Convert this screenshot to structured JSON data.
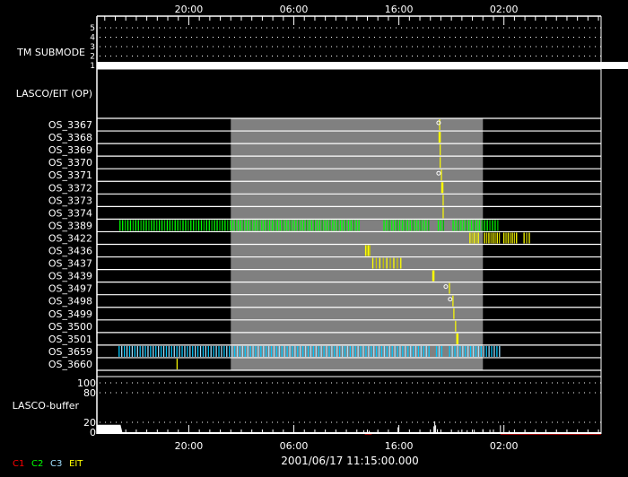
{
  "chart_data": {
    "type": "timeline",
    "title": "2001/06/17 11:15:00.000",
    "time_range": [
      "17 11:15",
      "19 11:15"
    ],
    "time_tick_labels": [
      {
        "t": "17 20:00",
        "label": "20:00"
      },
      {
        "t": "18 06:00",
        "label": "06:00"
      },
      {
        "t": "18 16:00",
        "label": "16:00"
      },
      {
        "t": "19 02:00",
        "label": "02:00"
      }
    ],
    "highlight_interval": [
      "18 00:00",
      "19 00:00"
    ],
    "highlight_color": "#808080",
    "tm_submode": {
      "label": "TM SUBMODE",
      "levels": [
        "1",
        "2",
        "3",
        "4",
        "5"
      ],
      "value": 1,
      "grid": "dotted"
    },
    "op_panel": {
      "label": "LASCO/EIT (OP)"
    },
    "rows": [
      {
        "label": "OS_3367",
        "color": "#ffff00",
        "marks": [
          "18 19:53"
        ],
        "circles": [
          "18 19:47"
        ]
      },
      {
        "label": "OS_3368",
        "color": "#ffff00",
        "marks": [
          "18 19:53"
        ],
        "thick": true
      },
      {
        "label": "OS_3369",
        "color": "#ffff00",
        "marks": [
          "18 19:56"
        ]
      },
      {
        "label": "OS_3370",
        "color": "#ffff00",
        "marks": [
          "18 19:56"
        ]
      },
      {
        "label": "OS_3371",
        "color": "#ffff00",
        "marks": [
          "18 20:03"
        ],
        "circles": [
          "18 19:47"
        ]
      },
      {
        "label": "OS_3372",
        "color": "#ffff00",
        "marks": [
          "18 20:08"
        ],
        "thick": true
      },
      {
        "label": "OS_3373",
        "color": "#ffff00",
        "marks": [
          "18 20:13"
        ]
      },
      {
        "label": "OS_3374",
        "color": "#ffff00",
        "marks": [
          "18 20:13"
        ]
      },
      {
        "label": "OS_3389",
        "color": "#00ff00",
        "ranges": [
          {
            "from": "17 13:27",
            "to": "18 12:25",
            "step_min": 15
          },
          {
            "from": "18 14:35",
            "to": "18 19:00",
            "step_min": 15
          },
          {
            "from": "18 19:45",
            "to": "18 20:25",
            "step_min": 15
          },
          {
            "from": "18 21:10",
            "to": "19 01:38",
            "step_min": 15
          }
        ]
      },
      {
        "label": "OS_3422",
        "color": "#ffff00",
        "ranges": [
          {
            "from": "18 22:46",
            "to": "18 23:45",
            "step_min": 12
          },
          {
            "from": "19 00:10",
            "to": "19 01:40",
            "step_min": 12
          },
          {
            "from": "19 02:00",
            "to": "19 03:15",
            "step_min": 12
          },
          {
            "from": "19 03:55",
            "to": "19 04:36",
            "step_min": 15
          }
        ]
      },
      {
        "label": "OS_3436",
        "color": "#ffff00",
        "ranges": [
          {
            "from": "18 12:50",
            "to": "18 13:21",
            "step_min": 8
          }
        ]
      },
      {
        "label": "OS_3437",
        "color": "#ffff00",
        "ranges": [
          {
            "from": "18 13:31",
            "to": "18 16:24",
            "step_min": 20
          }
        ]
      },
      {
        "label": "OS_3439",
        "color": "#ffff00",
        "marks": [
          "18 19:17"
        ],
        "thick": true
      },
      {
        "label": "OS_3497",
        "color": "#ffff00",
        "marks": [
          "18 20:49"
        ],
        "circles": [
          "18 20:28"
        ]
      },
      {
        "label": "OS_3498",
        "color": "#ffff00",
        "marks": [
          "18 21:09"
        ],
        "circles": [
          "18 20:53"
        ]
      },
      {
        "label": "OS_3499",
        "color": "#ffff00",
        "marks": [
          "18 21:14"
        ]
      },
      {
        "label": "OS_3500",
        "color": "#ffff00",
        "marks": [
          "18 21:24"
        ]
      },
      {
        "label": "OS_3501",
        "color": "#ffff00",
        "marks": [
          "18 21:34"
        ],
        "thick": true
      },
      {
        "label": "OS_3659",
        "color": "#00c8ff",
        "ranges": [
          {
            "from": "17 13:22",
            "to": "18 19:05",
            "step_min": 15
          },
          {
            "from": "18 19:35",
            "to": "18 20:05",
            "step_min": 15
          },
          {
            "from": "18 20:50",
            "to": "19 01:40",
            "step_min": 15
          }
        ]
      },
      {
        "label": "OS_3660",
        "color": "#ffff00",
        "marks": [
          "17 18:53"
        ]
      }
    ],
    "buffer": {
      "label": "LASCO-buffer",
      "ytick_labels": [
        "100",
        "80",
        "20",
        "0"
      ],
      "ylim": [
        0,
        100
      ],
      "grid": "dotted",
      "fill": [
        [
          "17 11:15",
          15
        ],
        [
          "17 13:30",
          15
        ]
      ],
      "spikes": [
        [
          "18 15:55",
          10
        ],
        [
          "18 12:40",
          4
        ],
        [
          "18 13:10",
          3
        ],
        [
          "18 14:00",
          3
        ],
        [
          "18 19:20",
          12
        ],
        [
          "18 19:25",
          22
        ],
        [
          "18 19:30",
          14
        ],
        [
          "18 19:40",
          6
        ],
        [
          "18 21:40",
          4
        ],
        [
          "18 22:30",
          4
        ],
        [
          "18 23:10",
          5
        ],
        [
          "19 00:00",
          6
        ],
        [
          "19 00:40",
          5
        ],
        [
          "19 01:40",
          14
        ],
        [
          "19 02:30",
          3
        ],
        [
          "19 04:00",
          3
        ]
      ],
      "red_intervals": [
        [
          "18 12:45",
          "18 13:25"
        ],
        [
          "19 01:40",
          "19 11:15"
        ]
      ]
    },
    "legend": [
      {
        "label": "C1",
        "color": "#ff0000"
      },
      {
        "label": "C2",
        "color": "#00ff00"
      },
      {
        "label": "C3",
        "color": "#a0e0ff"
      },
      {
        "label": "EIT",
        "color": "#ffff00"
      }
    ],
    "legend_placement": "bottom-left"
  }
}
